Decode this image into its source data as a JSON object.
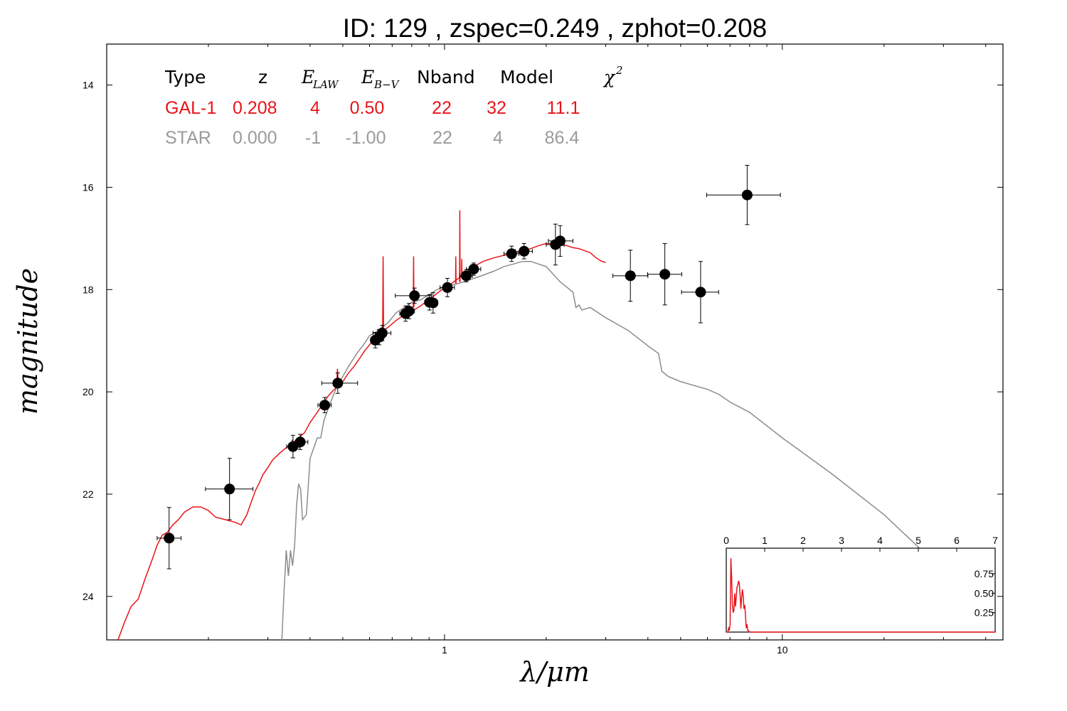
{
  "title": "ID:  129   , zspec=0.249 , zphot=0.208",
  "colors": {
    "galaxy": "#e8141a",
    "star": "#8c8c8c",
    "points": "#000000"
  },
  "table": {
    "headers": [
      "Type",
      "z",
      "E",
      "LAW",
      "E",
      "B−V",
      "Nband",
      "Model",
      "χ",
      "2"
    ],
    "rows": [
      {
        "color": "#e8141a",
        "cells": [
          "GAL-1",
          "0.208",
          "4",
          "0.50",
          "22",
          "32",
          "11.1"
        ]
      },
      {
        "color": "#9a9a9a",
        "cells": [
          "STAR",
          "0.000",
          "-1",
          "-1.00",
          "22",
          "4",
          "86.4"
        ]
      }
    ]
  },
  "chart_data": [
    {
      "type": "scatter",
      "title": "ID:  129   , zspec=0.249 , zphot=0.208",
      "xlabel": "λ/μm",
      "ylabel": "magnitude",
      "xscale": "log",
      "xlim": [
        0.1,
        45
      ],
      "ylim": [
        24.85,
        13.2
      ],
      "y_inverted": true,
      "xticks": [
        1,
        10
      ],
      "xtick_labels": [
        "1",
        "10"
      ],
      "yticks": [
        14,
        16,
        18,
        20,
        22,
        24
      ],
      "ytick_labels": [
        "14",
        "16",
        "18",
        "20",
        "22",
        "24"
      ],
      "grid": false,
      "legend": "top-left",
      "points": [
        {
          "x": 0.153,
          "y": 22.86,
          "xerr": [
            0.012,
            0.013
          ],
          "yerr": [
            0.6,
            0.6
          ]
        },
        {
          "x": 0.231,
          "y": 21.9,
          "xerr": [
            0.035,
            0.04
          ],
          "yerr": [
            0.6,
            0.6
          ]
        },
        {
          "x": 0.356,
          "y": 21.07,
          "xerr": [
            0.015,
            0.015
          ],
          "yerr": [
            0.22,
            0.22
          ]
        },
        {
          "x": 0.374,
          "y": 20.98,
          "xerr": [
            0.02,
            0.02
          ],
          "yerr": [
            0.15,
            0.15
          ]
        },
        {
          "x": 0.442,
          "y": 20.26,
          "xerr": [
            0.02,
            0.02
          ],
          "yerr": [
            0.15,
            0.15
          ]
        },
        {
          "x": 0.483,
          "y": 19.83,
          "xerr": [
            0.05,
            0.07
          ],
          "yerr": [
            0.2,
            0.2
          ]
        },
        {
          "x": 0.624,
          "y": 18.99,
          "xerr": [
            0.02,
            0.02
          ],
          "yerr": [
            0.15,
            0.15
          ]
        },
        {
          "x": 0.641,
          "y": 18.93,
          "xerr": [
            0.02,
            0.02
          ],
          "yerr": [
            0.15,
            0.15
          ]
        },
        {
          "x": 0.654,
          "y": 18.85,
          "xerr": [
            0.04,
            0.04
          ],
          "yerr": [
            0.15,
            0.15
          ]
        },
        {
          "x": 0.767,
          "y": 18.47,
          "xerr": [
            0.03,
            0.03
          ],
          "yerr": [
            0.15,
            0.15
          ]
        },
        {
          "x": 0.785,
          "y": 18.42,
          "xerr": [
            0.03,
            0.03
          ],
          "yerr": [
            0.15,
            0.15
          ]
        },
        {
          "x": 0.815,
          "y": 18.12,
          "xerr": [
            0.1,
            0.1
          ],
          "yerr": [
            0.15,
            0.15
          ]
        },
        {
          "x": 0.903,
          "y": 18.25,
          "xerr": [
            0.03,
            0.03
          ],
          "yerr": [
            0.15,
            0.15
          ]
        },
        {
          "x": 0.925,
          "y": 18.26,
          "xerr": [
            0.03,
            0.03
          ],
          "yerr": [
            0.2,
            0.2
          ]
        },
        {
          "x": 1.02,
          "y": 17.96,
          "xerr": [
            0.05,
            0.05
          ],
          "yerr": [
            0.18,
            0.18
          ]
        },
        {
          "x": 1.16,
          "y": 17.73,
          "xerr": [
            0.05,
            0.05
          ],
          "yerr": [
            0.12,
            0.12
          ]
        },
        {
          "x": 1.22,
          "y": 17.6,
          "xerr": [
            0.06,
            0.06
          ],
          "yerr": [
            0.12,
            0.12
          ]
        },
        {
          "x": 1.58,
          "y": 17.3,
          "xerr": [
            0.08,
            0.08
          ],
          "yerr": [
            0.15,
            0.15
          ]
        },
        {
          "x": 1.72,
          "y": 17.25,
          "xerr": [
            0.1,
            0.1
          ],
          "yerr": [
            0.15,
            0.15
          ]
        },
        {
          "x": 2.13,
          "y": 17.12,
          "xerr": [
            0.13,
            0.13
          ],
          "yerr": [
            0.4,
            0.4
          ]
        },
        {
          "x": 2.2,
          "y": 17.05,
          "xerr": [
            0.17,
            0.2
          ],
          "yerr": [
            0.3,
            0.3
          ]
        },
        {
          "x": 3.55,
          "y": 17.73,
          "xerr": [
            0.4,
            0.45
          ],
          "yerr": [
            0.5,
            0.5
          ]
        },
        {
          "x": 4.49,
          "y": 17.7,
          "xerr": [
            0.5,
            0.55
          ],
          "yerr": [
            0.6,
            0.6
          ]
        },
        {
          "x": 5.73,
          "y": 18.05,
          "xerr": [
            0.7,
            0.75
          ],
          "yerr": [
            0.6,
            0.6
          ]
        },
        {
          "x": 7.87,
          "y": 16.15,
          "xerr": [
            1.9,
            2.0
          ],
          "yerr": [
            0.58,
            0.58
          ]
        }
      ],
      "series": [
        {
          "type": "line",
          "color": "#e8141a",
          "x": [
            0.108,
            0.113,
            0.118,
            0.124,
            0.13,
            0.136,
            0.141,
            0.146,
            0.151,
            0.157,
            0.163,
            0.17,
            0.18,
            0.19,
            0.2,
            0.21,
            0.225,
            0.24,
            0.25,
            0.26,
            0.268,
            0.276,
            0.283,
            0.29,
            0.3,
            0.31,
            0.325,
            0.34,
            0.355,
            0.37,
            0.385,
            0.4,
            0.415,
            0.43,
            0.45,
            0.47,
            0.49,
            0.5,
            0.52,
            0.54,
            0.56,
            0.58,
            0.6,
            0.62,
            0.64,
            0.66,
            0.68,
            0.7,
            0.72,
            0.75,
            0.78,
            0.8,
            0.82,
            0.85,
            0.88,
            0.92,
            0.96,
            1.0,
            1.05,
            1.1,
            1.15,
            1.2,
            1.3,
            1.4,
            1.5,
            1.6,
            1.7,
            1.8,
            1.9,
            2.0,
            2.1,
            2.2,
            2.3,
            2.4,
            2.5,
            2.6,
            2.7,
            2.8,
            2.9,
            3.0
          ],
          "y": [
            24.85,
            24.5,
            24.2,
            24.05,
            23.65,
            23.3,
            23.0,
            22.8,
            22.75,
            22.6,
            22.5,
            22.35,
            22.25,
            22.25,
            22.32,
            22.45,
            22.5,
            22.55,
            22.6,
            22.4,
            22.15,
            21.92,
            21.78,
            21.62,
            21.48,
            21.33,
            21.2,
            21.09,
            21.0,
            20.9,
            20.8,
            20.6,
            20.45,
            20.3,
            20.1,
            19.96,
            19.87,
            19.8,
            19.63,
            19.5,
            19.35,
            19.2,
            19.08,
            18.96,
            18.88,
            18.8,
            18.74,
            18.67,
            18.6,
            18.52,
            18.47,
            18.42,
            18.38,
            18.32,
            18.24,
            18.15,
            18.05,
            17.97,
            17.88,
            17.78,
            17.68,
            17.58,
            17.45,
            17.38,
            17.33,
            17.3,
            17.25,
            17.2,
            17.14,
            17.1,
            17.1,
            17.12,
            17.14,
            17.18,
            17.2,
            17.24,
            17.28,
            17.37,
            17.44,
            17.47
          ],
          "spikes": [
            [
              0.482,
              19.8,
              19.55
            ],
            [
              0.658,
              18.75,
              17.35
            ],
            [
              0.81,
              18.35,
              17.35
            ],
            [
              1.11,
              17.85,
              16.45
            ],
            [
              1.08,
              17.88,
              17.35
            ],
            [
              1.125,
              17.78,
              17.4
            ]
          ]
        },
        {
          "type": "line",
          "color": "#8c8c8c",
          "x": [
            0.33,
            0.335,
            0.34,
            0.345,
            0.35,
            0.355,
            0.36,
            0.365,
            0.37,
            0.375,
            0.38,
            0.39,
            0.4,
            0.41,
            0.42,
            0.43,
            0.44,
            0.46,
            0.48,
            0.5,
            0.52,
            0.55,
            0.58,
            0.6,
            0.62,
            0.65,
            0.68,
            0.72,
            0.76,
            0.8,
            0.85,
            0.9,
            0.95,
            1.0,
            1.1,
            1.2,
            1.3,
            1.4,
            1.5,
            1.6,
            1.7,
            1.8,
            2.0,
            2.2,
            2.4,
            2.45,
            2.5,
            2.55,
            2.7,
            3.0,
            3.5,
            4.0,
            4.3,
            4.4,
            4.6,
            5.0,
            6.0,
            6.5,
            7.0,
            8.0,
            10.0,
            14.0,
            20.0,
            30.0
          ],
          "y": [
            24.85,
            23.9,
            23.1,
            23.6,
            23.1,
            23.4,
            23.0,
            22.2,
            21.8,
            21.9,
            22.5,
            22.4,
            21.3,
            21.1,
            20.9,
            20.9,
            20.55,
            20.2,
            19.9,
            19.7,
            19.5,
            19.25,
            19.05,
            18.9,
            18.85,
            18.75,
            18.65,
            18.45,
            18.35,
            18.25,
            18.2,
            18.1,
            18.0,
            17.95,
            17.88,
            17.8,
            17.72,
            17.64,
            17.55,
            17.5,
            17.45,
            17.45,
            17.55,
            17.85,
            18.05,
            18.35,
            18.3,
            18.4,
            18.35,
            18.55,
            18.8,
            19.1,
            19.25,
            19.6,
            19.7,
            19.8,
            19.95,
            20.05,
            20.2,
            20.4,
            20.9,
            21.6,
            22.4,
            23.5
          ]
        }
      ]
    },
    {
      "type": "line",
      "xlim": [
        0,
        7
      ],
      "ylim": [
        0,
        1.08
      ],
      "xticks": [
        0,
        1,
        2,
        3,
        4,
        5,
        6,
        7
      ],
      "xtick_labels": [
        "0",
        "1",
        "2",
        "3",
        "4",
        "5",
        "6",
        "7"
      ],
      "yticks": [
        0.25,
        0.5,
        0.75
      ],
      "ytick_labels": [
        "0.25",
        "0.50",
        "0.75"
      ],
      "series": [
        {
          "color": "#e8141a",
          "x": [
            0,
            0.04,
            0.06,
            0.08,
            0.1,
            0.12,
            0.14,
            0.16,
            0.18,
            0.2,
            0.22,
            0.24,
            0.26,
            0.28,
            0.3,
            0.32,
            0.34,
            0.36,
            0.38,
            0.4,
            0.42,
            0.44,
            0.46,
            0.48,
            0.5,
            0.52,
            0.54,
            0.56,
            0.58,
            0.6,
            0.62,
            0.64,
            0.66,
            0.68,
            0.7,
            7.0
          ],
          "y": [
            0,
            0,
            0.05,
            0.02,
            0.1,
            0.95,
            0.7,
            0.35,
            0.25,
            0.28,
            0.5,
            0.33,
            0.45,
            0.58,
            0.6,
            0.66,
            0.62,
            0.48,
            0.3,
            0.45,
            0.55,
            0.47,
            0.3,
            0.35,
            0.22,
            0.05,
            0.1,
            0.02,
            0.02,
            0,
            0,
            0,
            0,
            0,
            0,
            0
          ]
        }
      ]
    }
  ]
}
